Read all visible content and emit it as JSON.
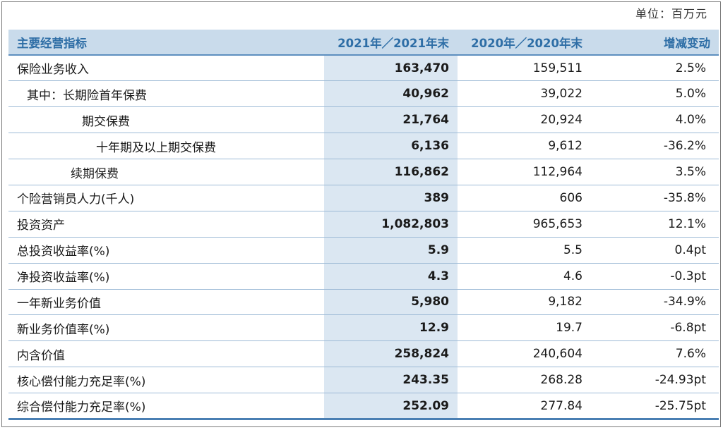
{
  "unit_label": "单位：百万元",
  "headers": {
    "metric": "主要经营指标",
    "col_2021": "2021年／2021年末",
    "col_2020": "2020年／2020年末",
    "change": "增减变动"
  },
  "rows": [
    {
      "label": "保险业务收入",
      "v2021": "163,470",
      "v2020": "159,511",
      "change": "2.5%"
    },
    {
      "label": "其中：长期险首年保费",
      "v2021": "40,962",
      "v2020": "39,022",
      "change": "5.0%"
    },
    {
      "label": "期交保费",
      "v2021": "21,764",
      "v2020": "20,924",
      "change": "4.0%"
    },
    {
      "label": "十年期及以上期交保费",
      "v2021": "6,136",
      "v2020": "9,612",
      "change": "-36.2%"
    },
    {
      "label": "续期保费",
      "v2021": "116,862",
      "v2020": "112,964",
      "change": "3.5%"
    },
    {
      "label": "个险营销员人力(千人)",
      "v2021": "389",
      "v2020": "606",
      "change": "-35.8%"
    },
    {
      "label": "投资资产",
      "v2021": "1,082,803",
      "v2020": "965,653",
      "change": "12.1%"
    },
    {
      "label": "总投资收益率(%)",
      "v2021": "5.9",
      "v2020": "5.5",
      "change": "0.4pt"
    },
    {
      "label": "净投资收益率(%)",
      "v2021": "4.3",
      "v2020": "4.6",
      "change": "-0.3pt"
    },
    {
      "label": "一年新业务价值",
      "v2021": "5,980",
      "v2020": "9,182",
      "change": "-34.9%"
    },
    {
      "label": "新业务价值率(%)",
      "v2021": "12.9",
      "v2020": "19.7",
      "change": "-6.8pt"
    },
    {
      "label": "内含价值",
      "v2021": "258,824",
      "v2020": "240,604",
      "change": "7.6%"
    },
    {
      "label": "核心偿付能力充足率(%)",
      "v2021": "243.35",
      "v2020": "268.28",
      "change": "-24.93pt"
    },
    {
      "label": "综合偿付能力充足率(%)",
      "v2021": "252.09",
      "v2020": "277.84",
      "change": "-25.75pt"
    }
  ]
}
